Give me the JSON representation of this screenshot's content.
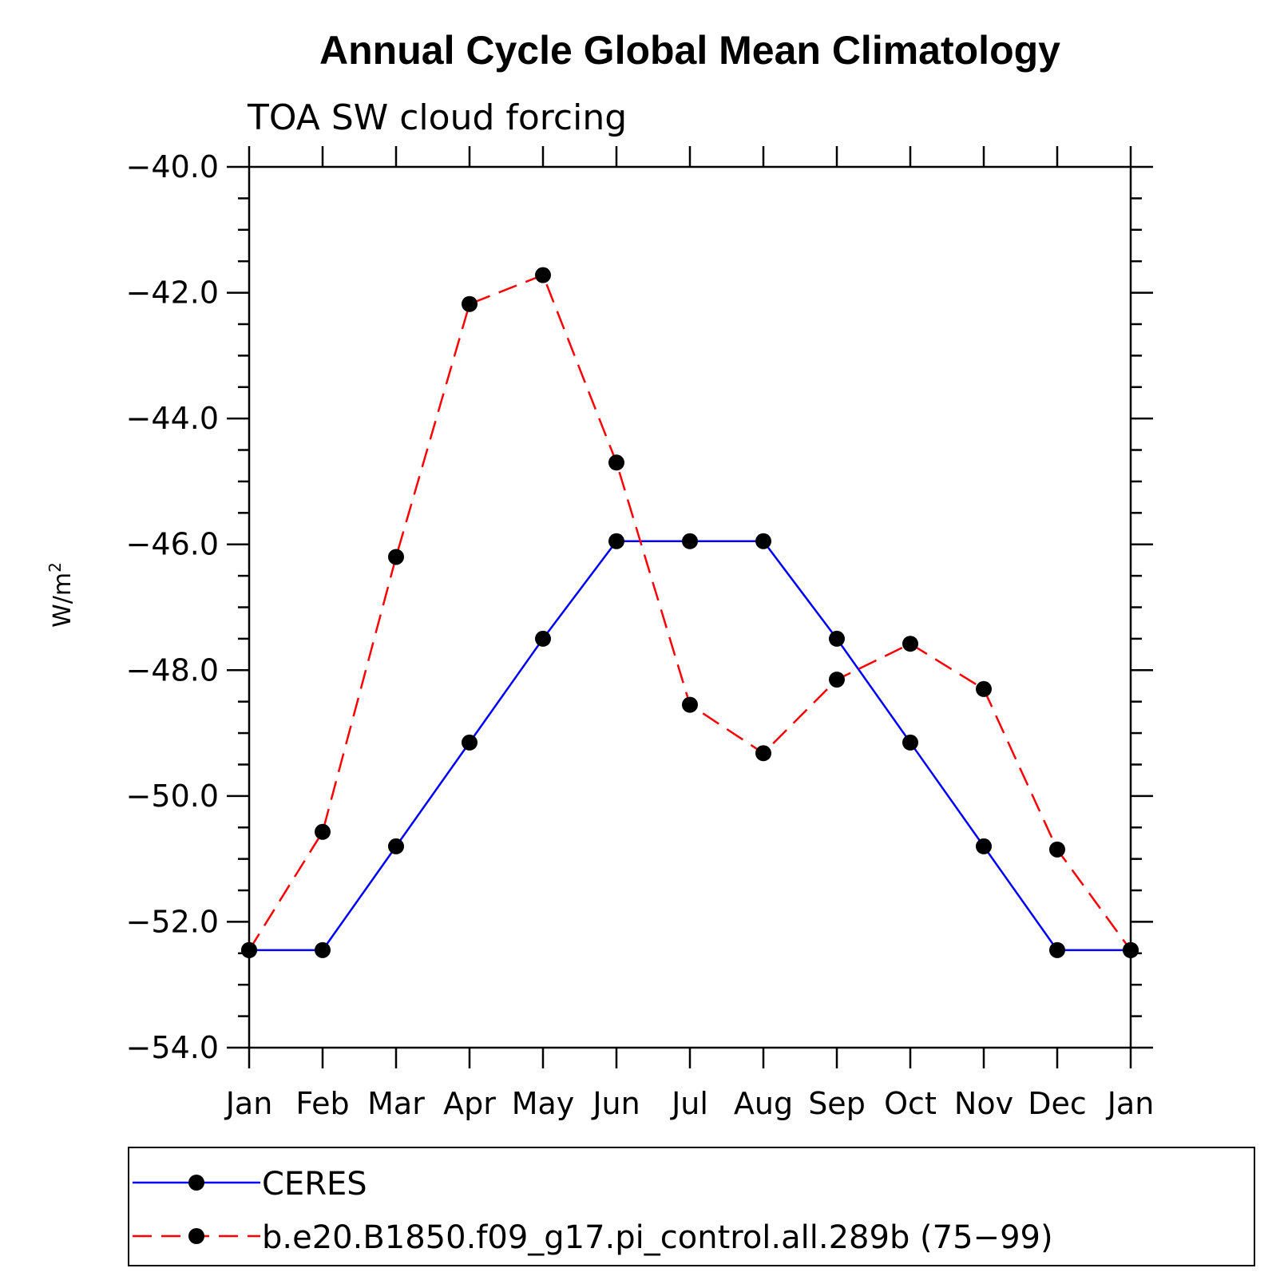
{
  "chart_data": {
    "type": "line",
    "title": "Annual Cycle Global Mean Climatology",
    "subtitle": "TOA SW cloud forcing",
    "ylabel": "W/m",
    "ylabel_superscript": "2",
    "xlabel": "",
    "categories": [
      "Jan",
      "Feb",
      "Mar",
      "Apr",
      "May",
      "Jun",
      "Jul",
      "Aug",
      "Sep",
      "Oct",
      "Nov",
      "Dec",
      "Jan"
    ],
    "ylim": [
      -54.0,
      -40.0
    ],
    "yticks": [
      -40.0,
      -42.0,
      -44.0,
      -46.0,
      -48.0,
      -50.0,
      -52.0,
      -54.0
    ],
    "ytick_labels": [
      "−40.0",
      "−42.0",
      "−44.0",
      "−46.0",
      "−48.0",
      "−50.0",
      "−52.0",
      "−54.0"
    ],
    "grid": false,
    "legend_position": "bottom",
    "series": [
      {
        "name": "CERES",
        "color": "#0000ff",
        "dash": "solid",
        "marker": "circle",
        "values": [
          -52.45,
          -52.45,
          -50.8,
          -49.15,
          -47.5,
          -45.95,
          -45.95,
          -45.95,
          -47.5,
          -49.15,
          -50.8,
          -52.45,
          -52.45
        ]
      },
      {
        "name": "b.e20.B1850.f09_g17.pi_control.all.289b (75−99)",
        "color": "#ff0000",
        "dash": "dashed",
        "marker": "circle",
        "values": [
          -52.45,
          -50.57,
          -46.2,
          -42.18,
          -41.72,
          -44.7,
          -48.55,
          -49.32,
          -48.15,
          -47.58,
          -48.3,
          -50.85,
          -52.45
        ]
      }
    ]
  }
}
